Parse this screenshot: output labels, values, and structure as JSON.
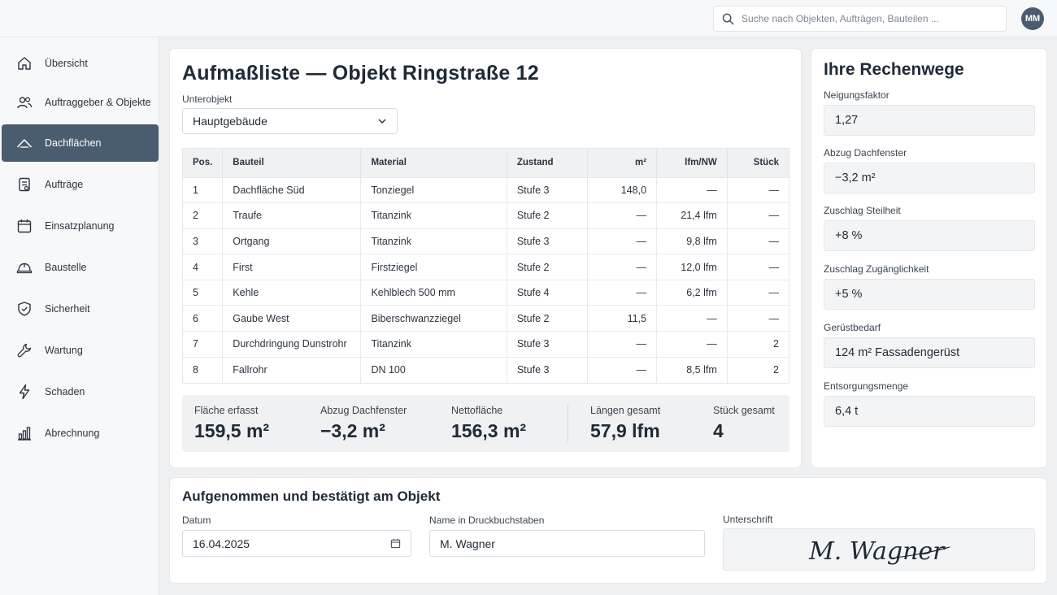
{
  "search": {
    "placeholder": "Suche nach Objekten, Aufträgen, Bauteilen ..."
  },
  "user": {
    "initials": "MM"
  },
  "sidebar": {
    "items": [
      {
        "label": "Übersicht",
        "icon": "home-icon"
      },
      {
        "label": "Auftraggeber & Objekte",
        "icon": "users-icon"
      },
      {
        "label": "Dachflächen",
        "icon": "roof-icon",
        "active": true
      },
      {
        "label": "Aufträge",
        "icon": "clipboard-icon"
      },
      {
        "label": "Einsatzplanung",
        "icon": "calendar-icon"
      },
      {
        "label": "Baustelle",
        "icon": "helmet-icon"
      },
      {
        "label": "Sicherheit",
        "icon": "shield-icon"
      },
      {
        "label": "Wartung",
        "icon": "wrench-icon"
      },
      {
        "label": "Schaden",
        "icon": "lightning-icon"
      },
      {
        "label": "Abrechnung",
        "icon": "bar-chart-icon"
      }
    ]
  },
  "main": {
    "title": "Aufmaßliste — Objekt Ringstraße 12",
    "unterobjekt": {
      "label": "Unterobjekt",
      "value": "Hauptgebäude"
    },
    "table": {
      "headers": [
        "Pos.",
        "Bauteil",
        "Material",
        "Zustand",
        "m²",
        "lfm/NW",
        "Stück"
      ],
      "rows": [
        [
          "1",
          "Dachfläche Süd",
          "Tonziegel",
          "Stufe 3",
          "148,0",
          "—",
          "—"
        ],
        [
          "2",
          "Traufe",
          "Titanzink",
          "Stufe 2",
          "—",
          "21,4 lfm",
          "—"
        ],
        [
          "3",
          "Ortgang",
          "Titanzink",
          "Stufe 3",
          "—",
          "9,8 lfm",
          "—"
        ],
        [
          "4",
          "First",
          "Firstziegel",
          "Stufe 2",
          "—",
          "12,0 lfm",
          "—"
        ],
        [
          "5",
          "Kehle",
          "Kehlblech 500 mm",
          "Stufe 4",
          "—",
          "6,2 lfm",
          "—"
        ],
        [
          "6",
          "Gaube West",
          "Biberschwanzziegel",
          "Stufe 2",
          "11,5",
          "—",
          "—"
        ],
        [
          "7",
          "Durchdringung Dunstrohr",
          "Titanzink",
          "Stufe 3",
          "—",
          "—",
          "2"
        ],
        [
          "8",
          "Fallrohr",
          "DN 100",
          "Stufe 3",
          "—",
          "8,5 lfm",
          "2"
        ]
      ]
    },
    "summary": [
      {
        "label": "Fläche erfasst",
        "value": "159,5 m²"
      },
      {
        "label": "Abzug Dachfenster",
        "value": "−3,2 m²"
      },
      {
        "label": "Nettofläche",
        "value": "156,3 m²"
      },
      {
        "label": "Längen gesamt",
        "value": "57,9 lfm"
      },
      {
        "label": "Stück gesamt",
        "value": "4"
      }
    ]
  },
  "side": {
    "title": "Ihre Rechenwege",
    "fields": [
      {
        "label": "Neigungsfaktor",
        "value": "1,27"
      },
      {
        "label": "Abzug Dachfenster",
        "value": "−3,2 m²"
      },
      {
        "label": "Zuschlag Steilheit",
        "value": "+8 %"
      },
      {
        "label": "Zuschlag Zugänglichkeit",
        "value": "+5 %"
      },
      {
        "label": "Gerüstbedarf",
        "value": "124 m² Fassadengerüst"
      },
      {
        "label": "Entsorgungsmenge",
        "value": "6,4 t"
      }
    ]
  },
  "confirm": {
    "title": "Aufgenommen und bestätigt am Objekt",
    "date_label": "Datum",
    "date_value": "16.04.2025",
    "name_label": "Name in Druckbuchstaben",
    "name_value": "M. Wagner",
    "signature_label": "Unterschrift",
    "signature_text": "M. Wagner"
  },
  "colors": {
    "accent": "#4a5c70",
    "background": "#eef0f2",
    "panel": "#eff1f3"
  }
}
